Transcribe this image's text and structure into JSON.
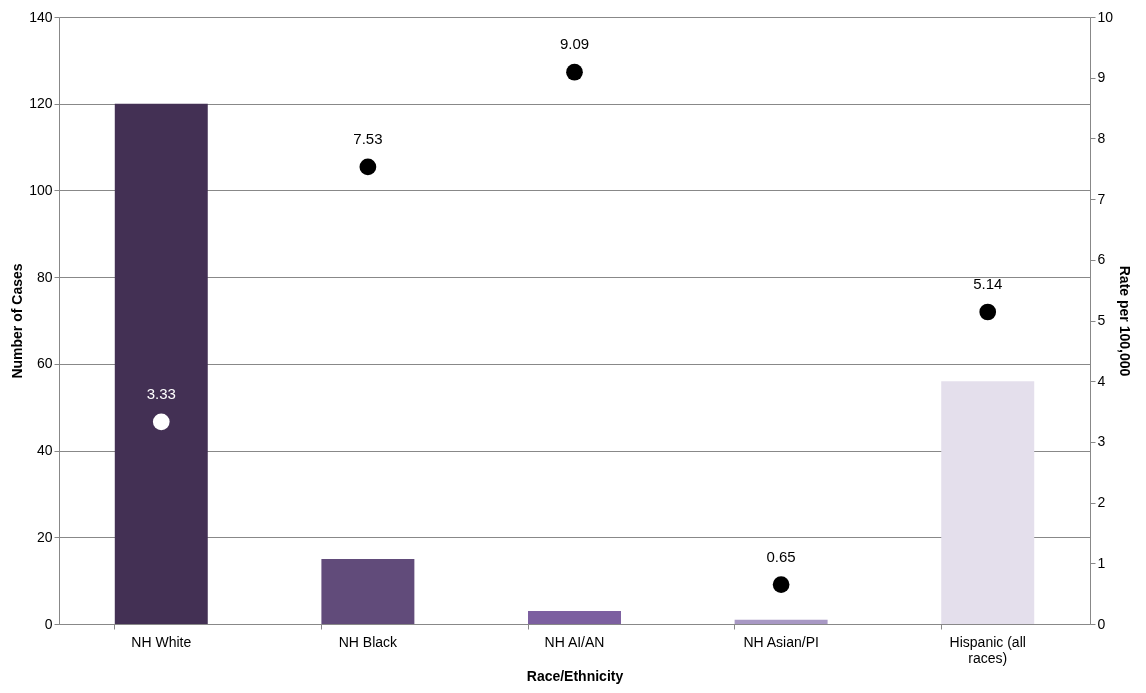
{
  "chart_data": {
    "type": "bar",
    "categories": [
      "NH White",
      "NH Black",
      "NH AI/AN",
      "NH Asian/PI",
      "Hispanic (all races)"
    ],
    "xlabel": "Race/Ethnicity",
    "ylabel": "Number of Cases",
    "y2label": "Rate per 100,000",
    "ylim": [
      0,
      140
    ],
    "yticks": [
      0,
      20,
      40,
      60,
      80,
      100,
      120,
      140
    ],
    "y2lim": [
      0,
      10
    ],
    "y2ticks": [
      0,
      1,
      2,
      3,
      4,
      5,
      6,
      7,
      8,
      9,
      10
    ],
    "grid": "y",
    "series": [
      {
        "colors": [
          "#433054",
          "#614b7a",
          "#7c5fa0",
          "#a898c4",
          "#e4dfec"
        ],
        "values": [
          120,
          15,
          3,
          1,
          56
        ]
      },
      {
        "type": "scatter",
        "axis": "y2",
        "marker": "circle",
        "colors": [
          "#ffffff",
          "#000000",
          "#000000",
          "#000000",
          "#000000"
        ],
        "values": [
          3.33,
          7.53,
          9.09,
          0.65,
          5.14
        ],
        "value_labels": [
          "3.33",
          "7.53",
          "9.09",
          "0.65",
          "5.14"
        ]
      }
    ]
  }
}
